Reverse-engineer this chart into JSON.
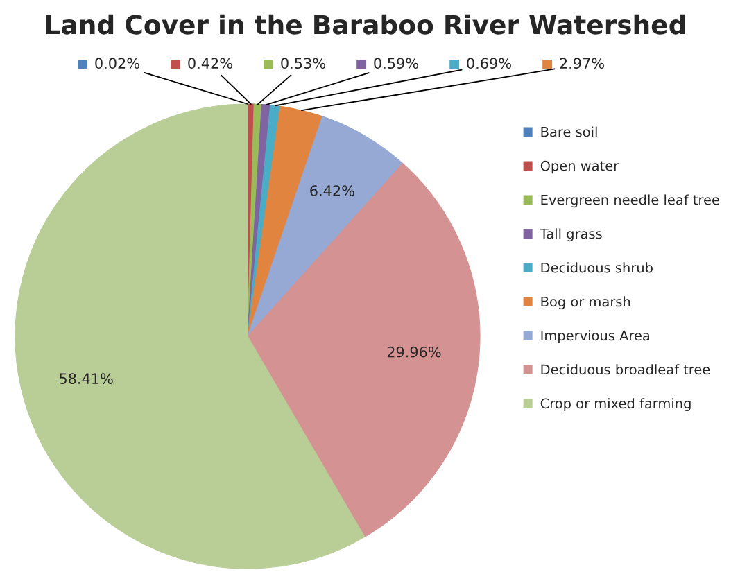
{
  "chart_data": {
    "type": "pie",
    "title": "Land Cover in the Baraboo River Watershed",
    "categories": [
      "Bare soil",
      "Open water",
      "Evergreen needle leaf tree",
      "Tall grass",
      "Deciduous shrub",
      "Bog or marsh",
      "Impervious Area",
      "Deciduous broadleaf tree",
      "Crop or mixed farming"
    ],
    "values": [
      0.02,
      0.42,
      0.53,
      0.59,
      0.69,
      2.97,
      6.42,
      29.96,
      58.41
    ],
    "value_labels": [
      "0.02%",
      "0.42%",
      "0.53%",
      "0.59%",
      "0.69%",
      "2.97%",
      "6.42%",
      "29.96%",
      "58.41%"
    ],
    "colors": [
      "#4f81bd",
      "#c0504d",
      "#9bbb59",
      "#8064a2",
      "#4bacc6",
      "#e0843f",
      "#95a9d4",
      "#d49292",
      "#b9cd96"
    ],
    "legend": "right"
  }
}
